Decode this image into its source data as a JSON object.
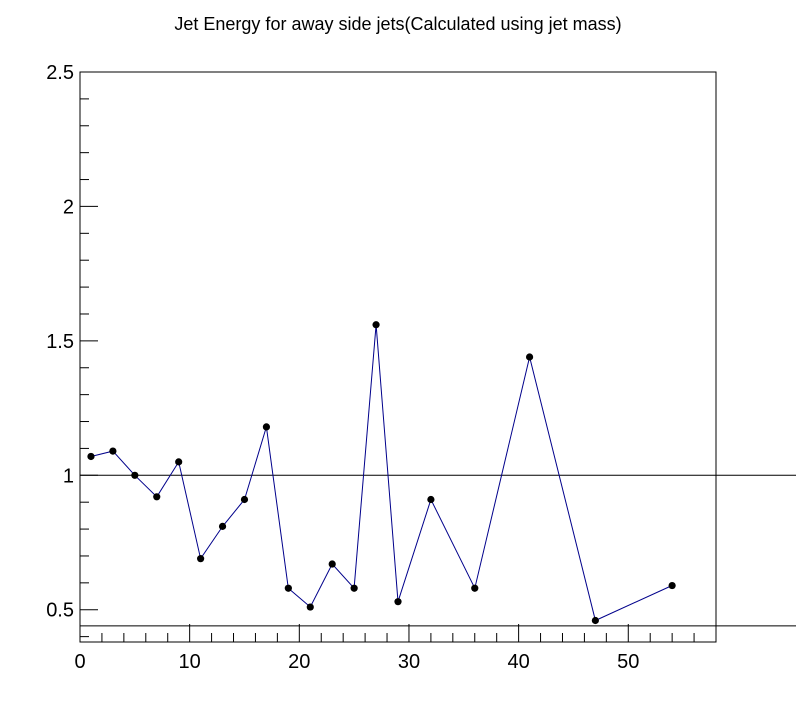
{
  "chart_data": {
    "type": "line",
    "title": "Jet Energy for away side jets(Calculated using jet mass)",
    "xlabel": "",
    "ylabel": "",
    "xlim": [
      0,
      58
    ],
    "ylim": [
      0.38,
      2.5
    ],
    "x_ticks": [
      "0",
      "10",
      "20",
      "30",
      "40",
      "50"
    ],
    "y_ticks": [
      "0.5",
      "1",
      "1.5",
      "2",
      "2.5"
    ],
    "reference_lines_y": [
      1.0,
      0.44
    ],
    "grid": false,
    "series": [
      {
        "color": "#00008b",
        "marker_color": "#000000",
        "x": [
          1,
          3,
          5,
          7,
          9,
          11,
          13,
          15,
          17,
          19,
          21,
          23,
          25,
          27,
          29,
          32,
          36,
          41,
          47,
          54
        ],
        "y": [
          1.07,
          1.09,
          1.0,
          0.92,
          1.05,
          0.69,
          0.81,
          0.91,
          1.18,
          0.58,
          0.51,
          0.67,
          0.58,
          1.56,
          0.53,
          0.91,
          0.58,
          1.44,
          0.46,
          0.59
        ]
      }
    ]
  }
}
